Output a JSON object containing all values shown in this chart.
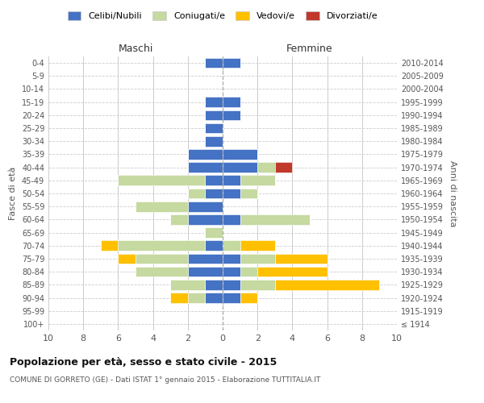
{
  "age_groups": [
    "100+",
    "95-99",
    "90-94",
    "85-89",
    "80-84",
    "75-79",
    "70-74",
    "65-69",
    "60-64",
    "55-59",
    "50-54",
    "45-49",
    "40-44",
    "35-39",
    "30-34",
    "25-29",
    "20-24",
    "15-19",
    "10-14",
    "5-9",
    "0-4"
  ],
  "birth_years": [
    "≤ 1914",
    "1915-1919",
    "1920-1924",
    "1925-1929",
    "1930-1934",
    "1935-1939",
    "1940-1944",
    "1945-1949",
    "1950-1954",
    "1955-1959",
    "1960-1964",
    "1965-1969",
    "1970-1974",
    "1975-1979",
    "1980-1984",
    "1985-1989",
    "1990-1994",
    "1995-1999",
    "2000-2004",
    "2005-2009",
    "2010-2014"
  ],
  "maschi_celibe": [
    0,
    0,
    1,
    1,
    2,
    2,
    1,
    0,
    2,
    2,
    1,
    1,
    2,
    2,
    1,
    1,
    1,
    1,
    0,
    0,
    1
  ],
  "maschi_coniugato": [
    0,
    0,
    1,
    2,
    3,
    3,
    5,
    1,
    1,
    3,
    1,
    5,
    0,
    0,
    0,
    0,
    0,
    0,
    0,
    0,
    0
  ],
  "maschi_vedovo": [
    0,
    0,
    1,
    0,
    0,
    1,
    1,
    0,
    0,
    0,
    0,
    0,
    0,
    0,
    0,
    0,
    0,
    0,
    0,
    0,
    0
  ],
  "maschi_divorziato": [
    0,
    0,
    0,
    0,
    0,
    0,
    0,
    0,
    0,
    0,
    0,
    0,
    0,
    0,
    0,
    0,
    0,
    0,
    0,
    0,
    0
  ],
  "femmine_celibe": [
    0,
    0,
    1,
    1,
    1,
    1,
    0,
    0,
    1,
    0,
    1,
    1,
    2,
    2,
    0,
    0,
    1,
    1,
    0,
    0,
    1
  ],
  "femmine_coniugato": [
    0,
    0,
    0,
    2,
    1,
    2,
    1,
    0,
    4,
    0,
    1,
    2,
    1,
    0,
    0,
    0,
    0,
    0,
    0,
    0,
    0
  ],
  "femmine_vedovo": [
    0,
    0,
    1,
    6,
    4,
    3,
    2,
    0,
    0,
    0,
    0,
    0,
    0,
    0,
    0,
    0,
    0,
    0,
    0,
    0,
    0
  ],
  "femmine_divorziato": [
    0,
    0,
    0,
    0,
    0,
    0,
    0,
    0,
    0,
    0,
    0,
    0,
    1,
    0,
    0,
    0,
    0,
    0,
    0,
    0,
    0
  ],
  "color_celibe": "#4472c4",
  "color_coniugato": "#c5d9a0",
  "color_vedovo": "#ffc000",
  "color_divorziato": "#c0392b",
  "title": "Popolazione per età, sesso e stato civile - 2015",
  "subtitle": "COMUNE DI GORRETO (GE) - Dati ISTAT 1° gennaio 2015 - Elaborazione TUTTITALIA.IT",
  "ylabel_left": "Fasce di età",
  "ylabel_right": "Anni di nascita",
  "xlabel_left": "Maschi",
  "xlabel_right": "Femmine",
  "xlim": 10,
  "bg_color": "#ffffff",
  "grid_color": "#cccccc"
}
